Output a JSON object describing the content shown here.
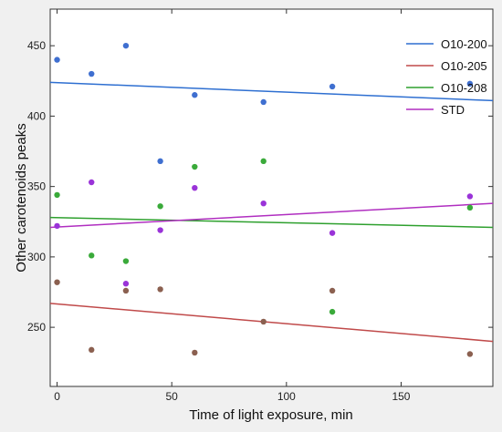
{
  "chart_data": {
    "type": "scatter",
    "title": "",
    "xlabel": "Time of light exposure, min",
    "ylabel": "Other carotenoids peaks",
    "xlim": [
      -3,
      190
    ],
    "ylim": [
      208,
      476
    ],
    "xticks": [
      0,
      50,
      100,
      150
    ],
    "yticks": [
      250,
      300,
      350,
      400,
      450
    ],
    "grid": false,
    "legend_position": "top-right",
    "series": [
      {
        "name": "O10-200",
        "color": "#3f6fd0",
        "x": [
          0,
          15,
          30,
          45,
          60,
          90,
          120,
          180
        ],
        "y": [
          440,
          430,
          450,
          368,
          415,
          410,
          421,
          423
        ],
        "trendline": [
          [
            -3,
            424
          ],
          [
            190,
            411
          ]
        ]
      },
      {
        "name": "O10-205",
        "color": "#8b6050",
        "x": [
          0,
          15,
          30,
          45,
          60,
          90,
          120,
          180
        ],
        "y": [
          282,
          234,
          276,
          277,
          232,
          254,
          276,
          231
        ],
        "trendline": [
          [
            -3,
            267
          ],
          [
            190,
            240
          ]
        ]
      },
      {
        "name": "O10-208",
        "color": "#3aaa3a",
        "x": [
          0,
          15,
          30,
          45,
          60,
          90,
          120,
          180
        ],
        "y": [
          344,
          301,
          297,
          336,
          364,
          368,
          261,
          335
        ],
        "trendline": [
          [
            -3,
            328
          ],
          [
            190,
            321
          ]
        ]
      },
      {
        "name": "STD",
        "color": "#9a33d8",
        "x": [
          0,
          15,
          30,
          45,
          60,
          90,
          120,
          180
        ],
        "y": [
          322,
          353,
          281,
          319,
          349,
          338,
          317,
          343
        ],
        "trendline": [
          [
            -3,
            321
          ],
          [
            190,
            338
          ]
        ]
      }
    ],
    "legend_line_colors": {
      "O10-200": "#2e6fd1",
      "O10-205": "#c04a4a",
      "O10-208": "#2ea02e",
      "STD": "#b02ec0"
    }
  }
}
